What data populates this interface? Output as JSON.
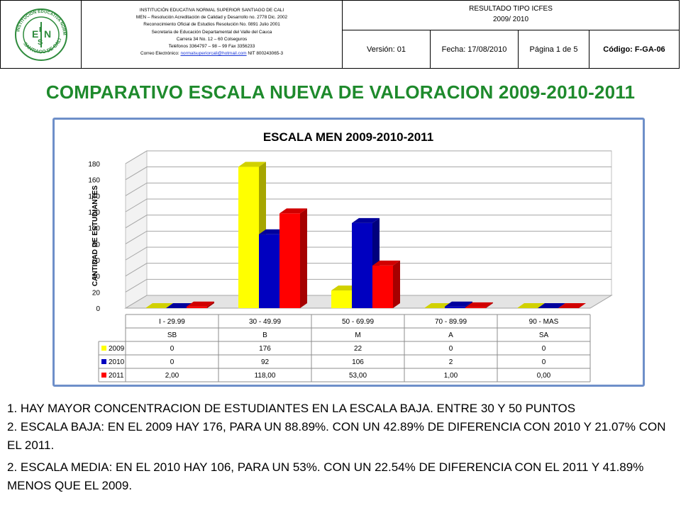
{
  "header": {
    "institution_lines": [
      "INSTITUCIÓN EDUCATIVA NORMAL SUPERIOR SANTIAGO DE CALI",
      "MEN – Resolución Acreditación de Calidad y Desarrollo no. 2778 Dic. 2002",
      "Reconocimiento Oficial de Estudios Resolución No. 0891 Julio 2001",
      "Secretaria de Educación Departamental del Valle del Cauca",
      "Carrera 34 No. 12 – 60 Colseguros",
      "Teléfonos 3364797 – 98 – 99 Fax 3356233"
    ],
    "email_prefix": "Correo Electrónico: ",
    "email": "normalsuperiorcali@hotmail.com",
    "nit": "NIT 800243065-3",
    "doc_title": "RESULTADO TIPO ICFES",
    "doc_period": "2009/ 2010",
    "version": "Versión: 01",
    "fecha": "Fecha: 17/08/2010",
    "pagina": "Página 1 de 5",
    "codigo": "Código: F-GA-06",
    "logo": {
      "ring_text": "INSTITUCIÓN EDUCATIVA NORMAL SUPERIOR",
      "ring_bottom": "SANTIAGO DE CALI",
      "monogram": [
        "E",
        "I",
        "S",
        "N"
      ]
    }
  },
  "page_title": "COMPARATIVO ESCALA NUEVA DE VALORACION 2009-2010-2011",
  "chart_data": {
    "type": "bar",
    "title": "ESCALA MEN 2009-2010-2011",
    "ylabel": "CANTIDAD DE ESTUDIANTES",
    "xlabel": "",
    "ylim": [
      0,
      180
    ],
    "yticks": [
      0,
      20,
      40,
      60,
      80,
      100,
      120,
      140,
      160,
      180
    ],
    "categories": [
      "I - 29.99",
      "30 - 49.99",
      "50 - 69.99",
      "70 - 89.99",
      "90 - MAS"
    ],
    "sub_categories": [
      "SB",
      "B",
      "M",
      "A",
      "SA"
    ],
    "series": [
      {
        "name": "2009",
        "color": "#ffff00",
        "values": [
          0,
          176,
          22,
          0,
          0
        ],
        "labels": [
          "0",
          "176",
          "22",
          "0",
          "0"
        ]
      },
      {
        "name": "2010",
        "color": "#0000c0",
        "values": [
          0,
          92,
          106,
          2,
          0
        ],
        "labels": [
          "0",
          "92",
          "106",
          "2",
          "0"
        ]
      },
      {
        "name": "2011",
        "color": "#ff0000",
        "values": [
          2,
          118,
          53,
          1,
          0
        ],
        "labels": [
          "2,00",
          "118,00",
          "53,00",
          "1,00",
          "0,00"
        ]
      }
    ],
    "grid": true,
    "legend": "data-table"
  },
  "notes": [
    "1. HAY MAYOR CONCENTRACION DE ESTUDIANTES EN LA ESCALA BAJA. ENTRE 30 Y 50 PUNTOS",
    "2. ESCALA BAJA: EN EL 2009 HAY 176, PARA UN 88.89%. CON UN 42.89% DE DIFERENCIA CON 2010 Y  21.07% CON EL 2011.",
    "2. ESCALA MEDIA: EN EL 2010 HAY 106, PARA UN 53%. CON UN 22.54% DE DIFERENCIA CON EL 2011 Y  41.89% MENOS QUE EL 2009."
  ]
}
